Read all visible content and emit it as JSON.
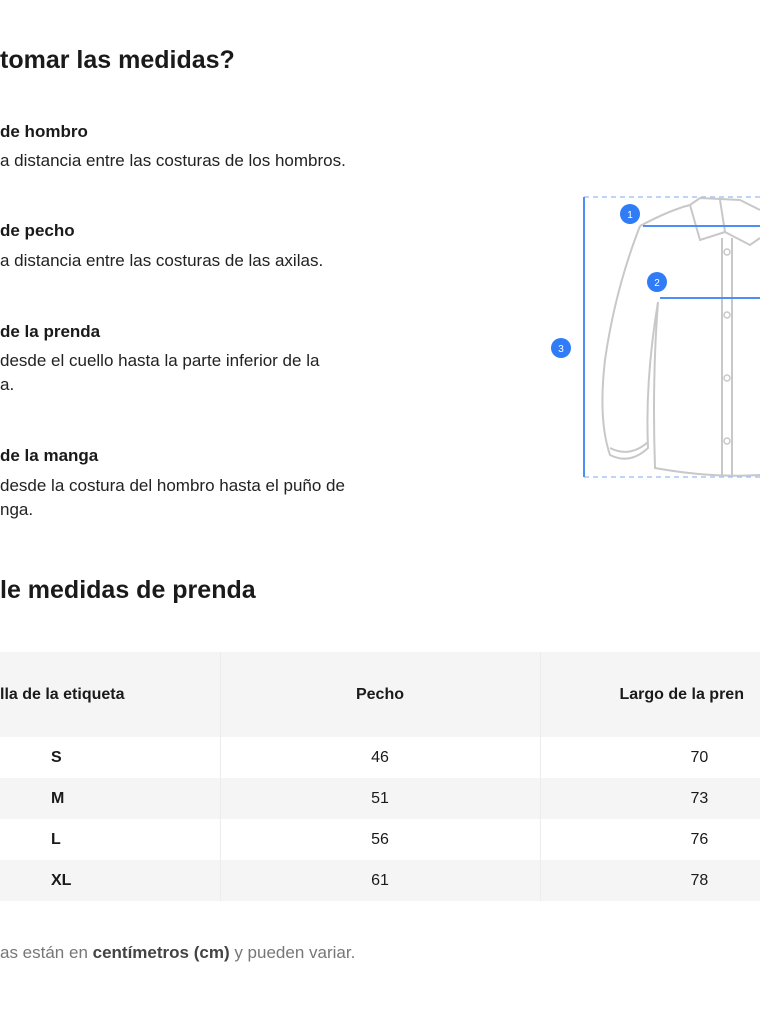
{
  "guide": {
    "title": " tomar las medidas?",
    "items": [
      {
        "title": " de hombro",
        "desc": [
          "a distancia entre las costuras de los hombros."
        ]
      },
      {
        "title": " de pecho",
        "desc": [
          "a distancia entre las costuras de las axilas."
        ]
      },
      {
        "title": "de la prenda",
        "desc": [
          "desde el cuello hasta la parte inferior de la",
          "a."
        ]
      },
      {
        "title": "de la manga",
        "desc": [
          "desde la costura del hombro hasta el puño de",
          "nga."
        ]
      }
    ],
    "diagram_markers": [
      "1",
      "2",
      "3"
    ],
    "accent_color": "#2f7cf6"
  },
  "table": {
    "title": "le medidas de prenda",
    "headers": [
      "lla de la etiqueta",
      "Pecho",
      "Largo de la pren"
    ],
    "rows": [
      [
        "S",
        "46",
        "70"
      ],
      [
        "M",
        "51",
        "73"
      ],
      [
        "L",
        "56",
        "76"
      ],
      [
        "XL",
        "61",
        "78"
      ]
    ]
  },
  "note": {
    "pre": "as están en ",
    "bold": "centímetros (cm)",
    "post": " y pueden variar."
  }
}
